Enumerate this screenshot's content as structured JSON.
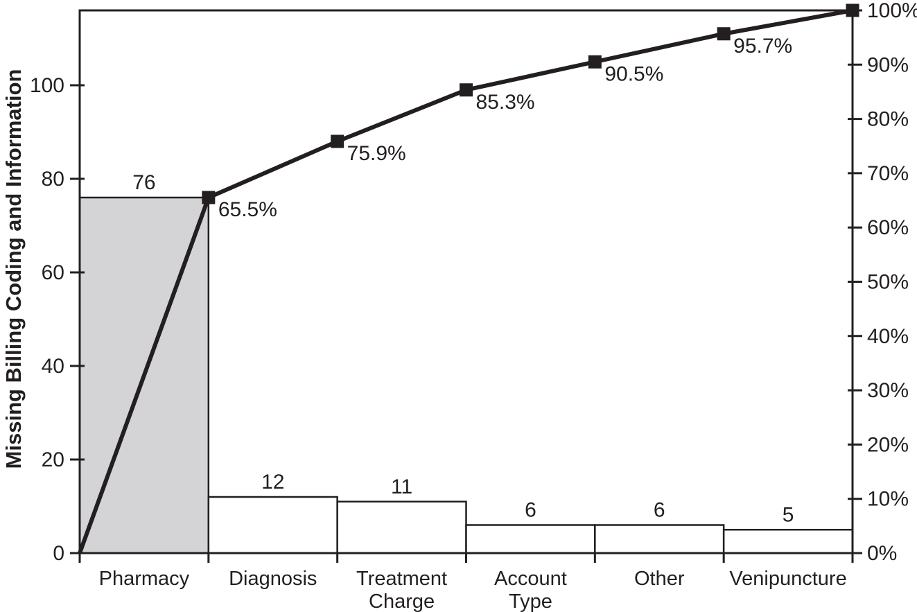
{
  "chart_data": {
    "type": "pareto",
    "title": "",
    "ylabel": "Missing Billing Coding and Information",
    "categories": [
      "Pharmacy",
      "Diagnosis",
      "Treatment\nCharge",
      "Account\nType",
      "Other",
      "Venipuncture"
    ],
    "values": [
      76,
      12,
      11,
      6,
      6,
      5
    ],
    "total": 116,
    "bar_value_labels": [
      "76",
      "12",
      "11",
      "6",
      "6",
      "5"
    ],
    "cumulative_values": [
      76,
      88,
      99,
      105,
      111,
      116
    ],
    "cumulative_percent_labels": [
      "65.5%",
      "75.9%",
      "85.3%",
      "90.5%",
      "95.7%",
      "100%"
    ],
    "left_axis": {
      "ticks": [
        0,
        20,
        40,
        60,
        80,
        100
      ],
      "max": 116
    },
    "right_axis": {
      "ticks": [
        "0%",
        "10%",
        "20%",
        "30%",
        "40%",
        "50%",
        "60%",
        "70%",
        "80%",
        "90%",
        "100%"
      ],
      "max": 100
    },
    "layout": {
      "grid": false,
      "legend": "none",
      "bar_gap": 0
    },
    "colors": {
      "highlight_bar_fill": "#d4d4d6",
      "bar_fill": "#ffffff",
      "stroke": "#231f20",
      "line": "#231f20",
      "marker": "#231f20",
      "text": "#231f20",
      "background": "#ffffff"
    }
  }
}
